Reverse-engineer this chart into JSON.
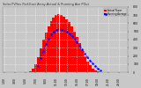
{
  "title": "Solar PV/Inv Perf-East Array-Actual & Running Ave POut",
  "bg_color": "#c8c8c8",
  "plot_bg_color": "#c8c8c8",
  "grid_color": "#ffffff",
  "bar_color": "#ff0000",
  "line_color": "#0000ff",
  "vline_color": "#ffffff",
  "text_color": "#000000",
  "title_color": "#333333",
  "ylim": [
    0,
    800
  ],
  "xlim": [
    -0.5,
    47.5
  ],
  "y_ticks": [
    0,
    100,
    200,
    300,
    400,
    500,
    600,
    700,
    800
  ],
  "actual_power": [
    0,
    0,
    0,
    0,
    0,
    0,
    0,
    0,
    2,
    5,
    15,
    40,
    100,
    180,
    290,
    400,
    490,
    565,
    625,
    670,
    700,
    710,
    700,
    680,
    650,
    610,
    560,
    500,
    430,
    355,
    275,
    200,
    135,
    82,
    45,
    18,
    7,
    2,
    0,
    0,
    0,
    0,
    0,
    0,
    0,
    0,
    0,
    0
  ],
  "running_avg": [
    0,
    0,
    0,
    0,
    0,
    0,
    0,
    0,
    0,
    0,
    0,
    0,
    0,
    80,
    170,
    265,
    345,
    410,
    460,
    495,
    515,
    525,
    520,
    512,
    495,
    472,
    442,
    408,
    368,
    325,
    278,
    232,
    185,
    145,
    108,
    72,
    45,
    22,
    0,
    0,
    0,
    0,
    0,
    0,
    0,
    0,
    0,
    0
  ],
  "vline_x": 21,
  "n_bars": 48,
  "legend_actual": "Actual Power",
  "legend_avg": "Running Average",
  "legend_color_actual": "#ff0000",
  "legend_color_avg": "#0000ff",
  "x_tick_positions": [
    0,
    4,
    8,
    12,
    16,
    20,
    24,
    28,
    32,
    36,
    40,
    44
  ],
  "x_tick_labels": [
    "1:00",
    "3:00",
    "5:00",
    "7:00",
    "9:00",
    "11:00",
    "13:00",
    "15:00",
    "17:00",
    "19:00",
    "21:00",
    "23:00"
  ]
}
